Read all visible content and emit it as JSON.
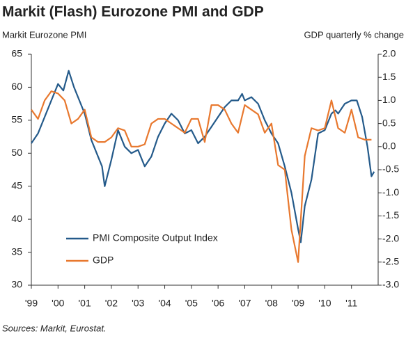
{
  "chart_data": {
    "type": "line",
    "title": "Markit (Flash) Eurozone PMI and GDP",
    "y_label": "Markit Eurozone PMI",
    "y2_label": "GDP quarterly % change",
    "source": "Sources: Markit, Eurostat.",
    "xlim": [
      1999,
      2012
    ],
    "xticks": [
      {
        "value": 1999,
        "label": "'99"
      },
      {
        "value": 2000,
        "label": "'00"
      },
      {
        "value": 2001,
        "label": "'01"
      },
      {
        "value": 2002,
        "label": "'02"
      },
      {
        "value": 2003,
        "label": "'03"
      },
      {
        "value": 2004,
        "label": "'04"
      },
      {
        "value": 2005,
        "label": "'05"
      },
      {
        "value": 2006,
        "label": "'06"
      },
      {
        "value": 2007,
        "label": "'07"
      },
      {
        "value": 2008,
        "label": "'08"
      },
      {
        "value": 2009,
        "label": "'09"
      },
      {
        "value": 2010,
        "label": "'10"
      },
      {
        "value": 2011,
        "label": "'11"
      }
    ],
    "ylim": [
      30,
      65
    ],
    "yticks": [
      30,
      35,
      40,
      45,
      50,
      55,
      60,
      65
    ],
    "y2lim": [
      -3,
      2
    ],
    "y2ticks": [
      {
        "value": -3,
        "label": "-3.0"
      },
      -2.5,
      {
        "value": -2,
        "label": "-2.0"
      },
      -1.5,
      {
        "value": -1,
        "label": "-1.0"
      },
      -0.5,
      {
        "value": 0,
        "label": "0.0"
      },
      0.5,
      {
        "value": 1,
        "label": "1.0"
      },
      1.5,
      {
        "value": 2,
        "label": "2.0"
      }
    ],
    "legend": "lower left",
    "series": [
      {
        "name": "PMI Composite Output Index",
        "color": "#245a8a",
        "x": [
          1999.0,
          1999.25,
          1999.5,
          1999.75,
          2000.0,
          2000.2,
          2000.4,
          2000.6,
          2000.85,
          2001.0,
          2001.25,
          2001.5,
          2001.65,
          2001.75,
          2002.0,
          2002.25,
          2002.5,
          2002.75,
          2003.0,
          2003.25,
          2003.5,
          2003.75,
          2004.0,
          2004.25,
          2004.5,
          2004.75,
          2005.0,
          2005.25,
          2005.5,
          2005.75,
          2006.0,
          2006.25,
          2006.5,
          2006.75,
          2006.9,
          2007.0,
          2007.25,
          2007.5,
          2007.75,
          2008.0,
          2008.25,
          2008.5,
          2008.75,
          2009.0,
          2009.1,
          2009.25,
          2009.5,
          2009.75,
          2010.0,
          2010.25,
          2010.4,
          2010.5,
          2010.75,
          2011.0,
          2011.2,
          2011.4,
          2011.6,
          2011.75,
          2011.85
        ],
        "values": [
          51.5,
          53,
          55.5,
          58,
          60.5,
          59.5,
          62.5,
          60,
          57.5,
          56,
          52,
          49.5,
          48,
          45,
          49,
          53.5,
          51,
          50,
          50.5,
          48,
          49.5,
          52.5,
          54.5,
          56,
          55,
          53,
          53.5,
          51.5,
          52.5,
          54,
          55.5,
          57,
          58,
          58,
          59,
          58,
          58.5,
          57.5,
          55,
          53,
          51.5,
          48,
          44,
          38.5,
          36.5,
          42,
          46,
          53,
          53.5,
          56,
          56.5,
          56,
          57.5,
          58,
          58,
          55.5,
          51,
          46.5,
          47.2
        ]
      },
      {
        "name": "GDP",
        "color": "#e8782e",
        "axis": "y2",
        "x": [
          1999.0,
          1999.25,
          1999.5,
          1999.75,
          2000.0,
          2000.25,
          2000.5,
          2000.75,
          2001.0,
          2001.25,
          2001.5,
          2001.75,
          2002.0,
          2002.25,
          2002.5,
          2002.75,
          2003.0,
          2003.25,
          2003.5,
          2003.75,
          2004.0,
          2004.25,
          2004.5,
          2004.75,
          2005.0,
          2005.25,
          2005.5,
          2005.75,
          2006.0,
          2006.25,
          2006.5,
          2006.75,
          2007.0,
          2007.25,
          2007.5,
          2007.75,
          2008.0,
          2008.25,
          2008.5,
          2008.75,
          2009.0,
          2009.25,
          2009.5,
          2009.75,
          2010.0,
          2010.25,
          2010.5,
          2010.75,
          2011.0,
          2011.25,
          2011.5,
          2011.75
        ],
        "values": [
          0.8,
          0.6,
          1.0,
          1.2,
          1.15,
          1.0,
          0.5,
          0.6,
          0.8,
          0.2,
          0.1,
          0.1,
          0.2,
          0.4,
          0.35,
          0.0,
          0.0,
          0.05,
          0.5,
          0.6,
          0.6,
          0.5,
          0.4,
          0.3,
          0.6,
          0.6,
          0.1,
          0.9,
          0.9,
          0.8,
          0.5,
          0.3,
          0.9,
          0.8,
          0.7,
          0.3,
          0.5,
          -0.4,
          -0.5,
          -1.8,
          -2.5,
          -0.2,
          0.4,
          0.35,
          0.4,
          1.0,
          0.4,
          0.3,
          0.8,
          0.2,
          0.15,
          0.15
        ]
      }
    ]
  }
}
